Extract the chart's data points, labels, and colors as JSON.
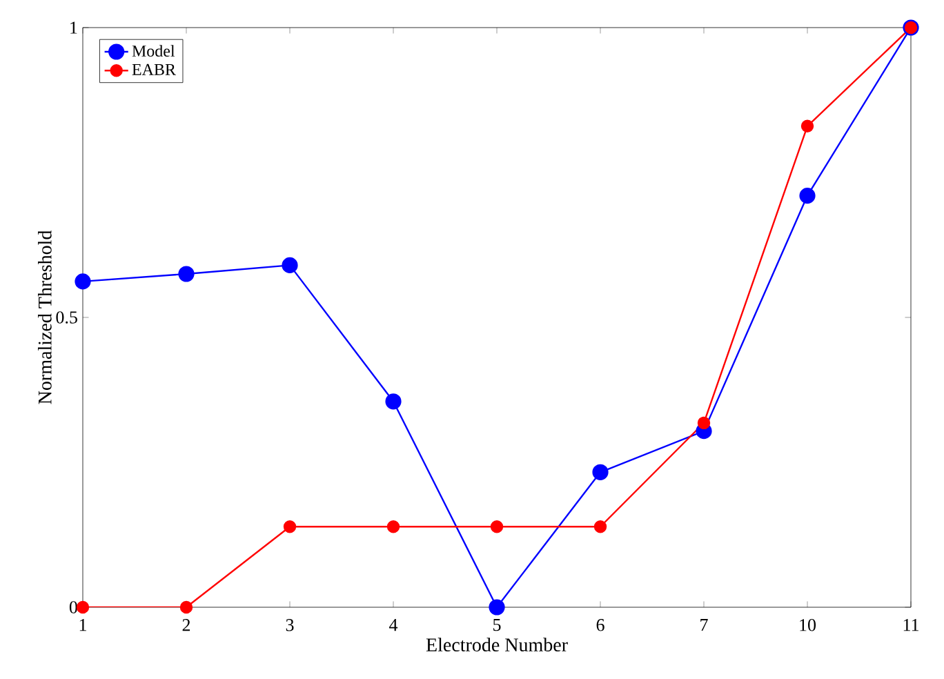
{
  "chart_data": {
    "type": "line",
    "xlabel": "Electrode Number",
    "ylabel": "Normalized Threshold",
    "categories": [
      "1",
      "2",
      "3",
      "4",
      "5",
      "6",
      "7",
      "10",
      "11"
    ],
    "series": [
      {
        "name": "Model",
        "color": "#0000ff",
        "values": [
          0.562,
          0.575,
          0.59,
          0.355,
          0,
          0.233,
          0.304,
          0.71,
          1
        ]
      },
      {
        "name": "EABR",
        "color": "#ff0000",
        "values": [
          0,
          0,
          0.139,
          0.139,
          0.139,
          0.139,
          0.318,
          0.83,
          1
        ]
      }
    ],
    "ylim": [
      0,
      1
    ],
    "yticks": [
      0,
      0.5,
      1
    ],
    "legend": "top left",
    "marker": "circle",
    "line_style": "solid",
    "grid": false
  }
}
